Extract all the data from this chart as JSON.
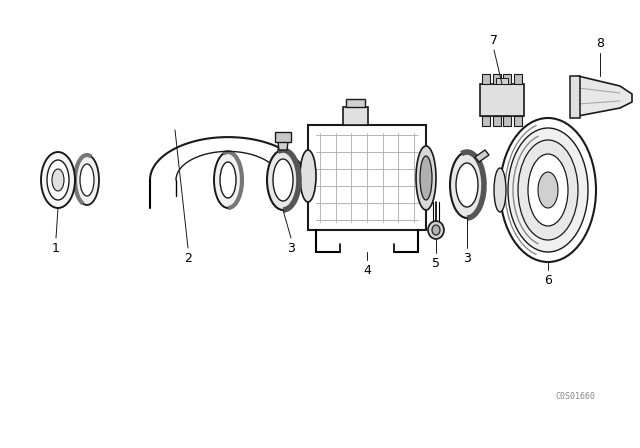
{
  "bg_color": "#ffffff",
  "line_color": "#1a1a1a",
  "fig_width": 6.4,
  "fig_height": 4.48,
  "dpi": 100,
  "watermark": "C0S01660"
}
